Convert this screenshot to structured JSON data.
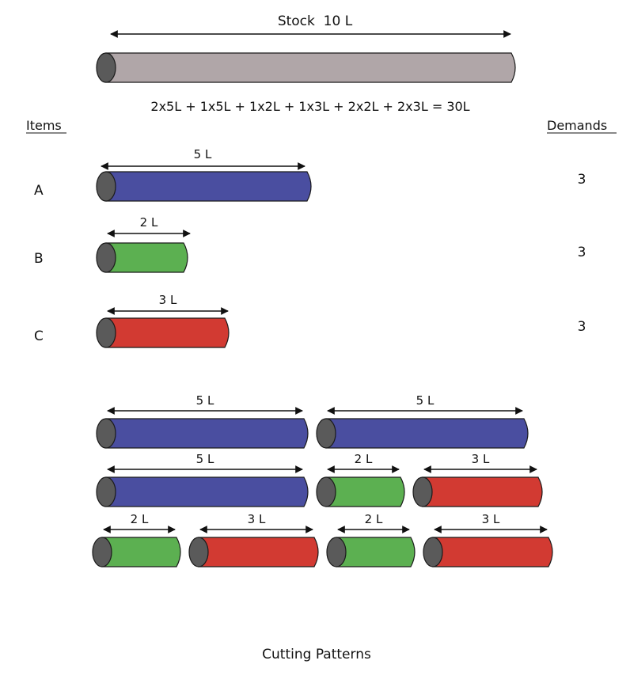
{
  "colors": {
    "stock": "#b0a6a8",
    "item_a": "#4a4ea0",
    "item_b": "#5cb051",
    "item_c": "#d23a32",
    "cap": "#5a5a5a"
  },
  "stock": {
    "label": "Stock  10 L",
    "length": 10
  },
  "equation": "2x5L + 1x5L + 1x2L + 1x3L + 2x2L + 2x3L = 30L",
  "headers": {
    "items": "Items",
    "demands": "Demands"
  },
  "items": [
    {
      "id": "A",
      "length": 5,
      "length_label": "5 L",
      "demand": "3",
      "color_key": "item_a"
    },
    {
      "id": "B",
      "length": 2,
      "length_label": "2 L",
      "demand": "3",
      "color_key": "item_b"
    },
    {
      "id": "C",
      "length": 3,
      "length_label": "3 L",
      "demand": "3",
      "color_key": "item_c"
    }
  ],
  "patterns": [
    {
      "pieces": [
        {
          "item": "A",
          "label": "5 L"
        },
        {
          "item": "A",
          "label": "5 L"
        }
      ]
    },
    {
      "pieces": [
        {
          "item": "A",
          "label": "5 L"
        },
        {
          "item": "B",
          "label": "2 L"
        },
        {
          "item": "C",
          "label": "3 L"
        }
      ]
    },
    {
      "pieces": [
        {
          "item": "B",
          "label": "2 L"
        },
        {
          "item": "C",
          "label": "3 L"
        },
        {
          "item": "B",
          "label": "2 L"
        },
        {
          "item": "C",
          "label": "3 L"
        }
      ]
    }
  ],
  "caption": "Cutting Patterns"
}
